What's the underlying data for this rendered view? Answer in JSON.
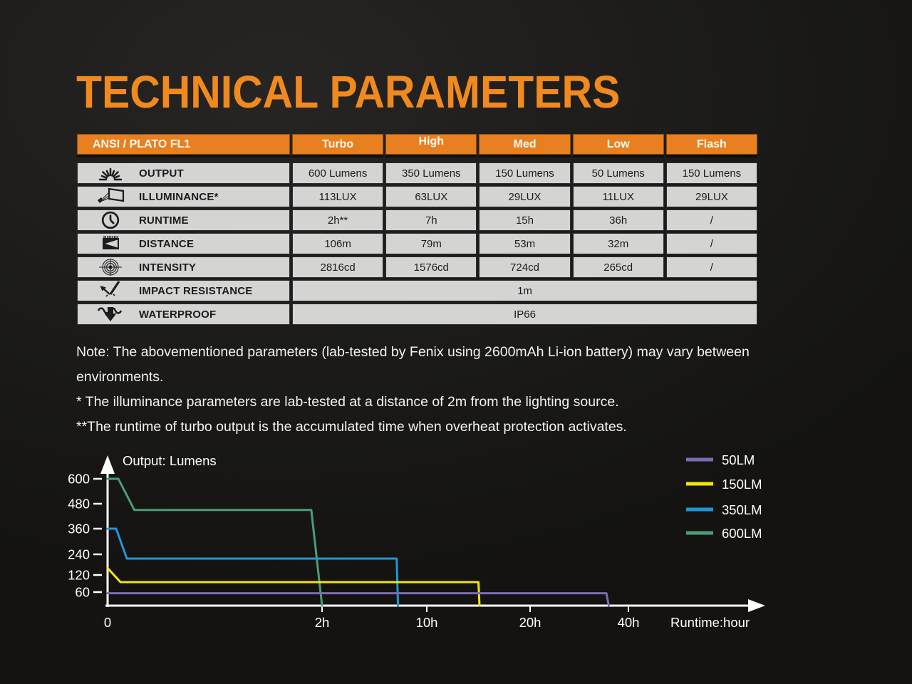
{
  "page": {
    "title": "TECHNICAL PARAMETERS"
  },
  "colors": {
    "title_orange": "#f0891e",
    "table_header_orange": "#e8801f",
    "cell_gray": "#d4d4d3",
    "chart_axis_white": "#ffffff"
  },
  "table": {
    "header": [
      "ANSI / PLATO FL1",
      "Turbo",
      "High",
      "Med",
      "Low",
      "Flash"
    ],
    "rows": [
      {
        "icon": "sunburst-icon",
        "label": "OUTPUT",
        "values": [
          "600 Lumens",
          "350 Lumens",
          "150 Lumens",
          "50 Lumens",
          "150 Lumens"
        ]
      },
      {
        "icon": "illuminance-icon",
        "label": "ILLUMINANCE*",
        "values": [
          "113LUX",
          "63LUX",
          "29LUX",
          "11LUX",
          "29LUX"
        ]
      },
      {
        "icon": "clock-icon",
        "label": "RUNTIME",
        "values": [
          "2h**",
          "7h",
          "15h",
          "36h",
          "/"
        ]
      },
      {
        "icon": "beam-distance-icon",
        "label": "DISTANCE",
        "values": [
          "106m",
          "79m",
          "53m",
          "32m",
          "/"
        ]
      },
      {
        "icon": "target-icon",
        "label": "INTENSITY",
        "values": [
          "2816cd",
          "1576cd",
          "724cd",
          "265cd",
          "/"
        ]
      },
      {
        "icon": "impact-icon",
        "label": "IMPACT RESISTANCE",
        "span_value": "1m"
      },
      {
        "icon": "waterproof-icon",
        "label": "WATERPROOF",
        "span_value": "IP66"
      }
    ]
  },
  "notes": [
    "Note: The abovementioned parameters (lab-tested by Fenix using 2600mAh Li-ion battery) may vary between environments.",
    "* The illuminance parameters are lab-tested at a distance of 2m from the lighting source.",
    "**The runtime of turbo output is the accumulated time when overheat protection activates."
  ],
  "chart_data": {
    "type": "line",
    "title": "Output: Lumens",
    "xlabel": "Runtime:hour",
    "x_unit": "hours",
    "y_unit": "lumens",
    "grid": false,
    "legend_position": "top-right",
    "x_ticks": [
      {
        "label": "0",
        "value": 0
      },
      {
        "label": "2h",
        "value": 2
      },
      {
        "label": "10h",
        "value": 10
      },
      {
        "label": "20h",
        "value": 20
      },
      {
        "label": "40h",
        "value": 40
      }
    ],
    "y_ticks": [
      600,
      480,
      360,
      240,
      120,
      60
    ],
    "ylim": [
      0,
      640
    ],
    "x_axis_note": "non-linear compressed hour axis",
    "series": [
      {
        "name": "50LM",
        "color": "#7d6cb2",
        "points": [
          [
            0,
            55
          ],
          [
            35.5,
            55
          ],
          [
            36,
            0
          ]
        ]
      },
      {
        "name": "150LM",
        "color": "#f2e60d",
        "points": [
          [
            0,
            160
          ],
          [
            0.12,
            95
          ],
          [
            15,
            95
          ],
          [
            15.1,
            0
          ]
        ]
      },
      {
        "name": "350LM",
        "color": "#1f97d6",
        "points": [
          [
            0,
            360
          ],
          [
            0.08,
            360
          ],
          [
            0.18,
            215
          ],
          [
            7.7,
            215
          ],
          [
            7.8,
            0
          ]
        ]
      },
      {
        "name": "600LM",
        "color": "#4a9e74",
        "points": [
          [
            0,
            600
          ],
          [
            0.1,
            600
          ],
          [
            0.25,
            450
          ],
          [
            1.9,
            450
          ],
          [
            2,
            0
          ]
        ]
      }
    ]
  }
}
